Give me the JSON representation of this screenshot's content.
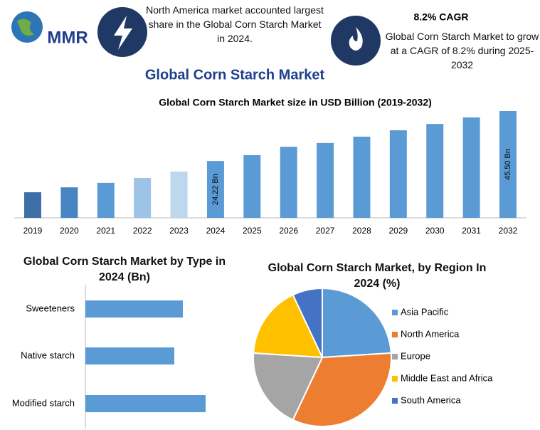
{
  "header": {
    "logo_text": "MMR",
    "fact": "North America market accounted largest share in the Global Corn Starch Market in 2024.",
    "cagr_title": "8.2% CAGR",
    "cagr_text": "Global Corn Starch Market to grow at a CAGR of 8.2% during 2025-2032",
    "main_title": "Global Corn Starch Market"
  },
  "chart_data": [
    {
      "type": "bar",
      "title": "Global Corn Starch Market size in USD Billion (2019-2032)",
      "categories": [
        "2019",
        "2020",
        "2021",
        "2022",
        "2023",
        "2024",
        "2025",
        "2026",
        "2027",
        "2028",
        "2029",
        "2030",
        "2031",
        "2032"
      ],
      "values": [
        10.9,
        13.0,
        14.9,
        17.0,
        19.7,
        24.22,
        26.7,
        30.3,
        31.9,
        34.6,
        37.3,
        40.0,
        42.8,
        45.5
      ],
      "value_labels": [
        null,
        null,
        null,
        null,
        null,
        "24.22 Bn",
        null,
        null,
        null,
        null,
        null,
        null,
        null,
        "45.50 Bn"
      ],
      "colors": [
        "#3e6fa6",
        "#4a85c3",
        "#5b9bd5",
        "#9dc3e6",
        "#bdd7ee",
        "#5b9bd5",
        "#5b9bd5",
        "#5b9bd5",
        "#5b9bd5",
        "#5b9bd5",
        "#5b9bd5",
        "#5b9bd5",
        "#5b9bd5",
        "#5b9bd5"
      ]
    },
    {
      "type": "barh",
      "title": "Global Corn Starch Market by Type in 2024 (Bn)",
      "categories": [
        "Sweeteners",
        "Native starch",
        "Modified starch"
      ],
      "values": [
        13.7,
        12.5,
        16.9
      ],
      "color": "#5b9bd5"
    },
    {
      "type": "pie",
      "title": "Global Corn Starch Market, by Region In 2024 (%)",
      "categories": [
        "Asia Pacific",
        "North America",
        "Europe",
        "Middle East and Africa",
        "South America"
      ],
      "values": [
        24,
        33,
        19,
        17,
        7
      ],
      "colors": [
        "#5b9bd5",
        "#ed7d31",
        "#a5a5a5",
        "#ffc000",
        "#4472c4"
      ]
    }
  ]
}
